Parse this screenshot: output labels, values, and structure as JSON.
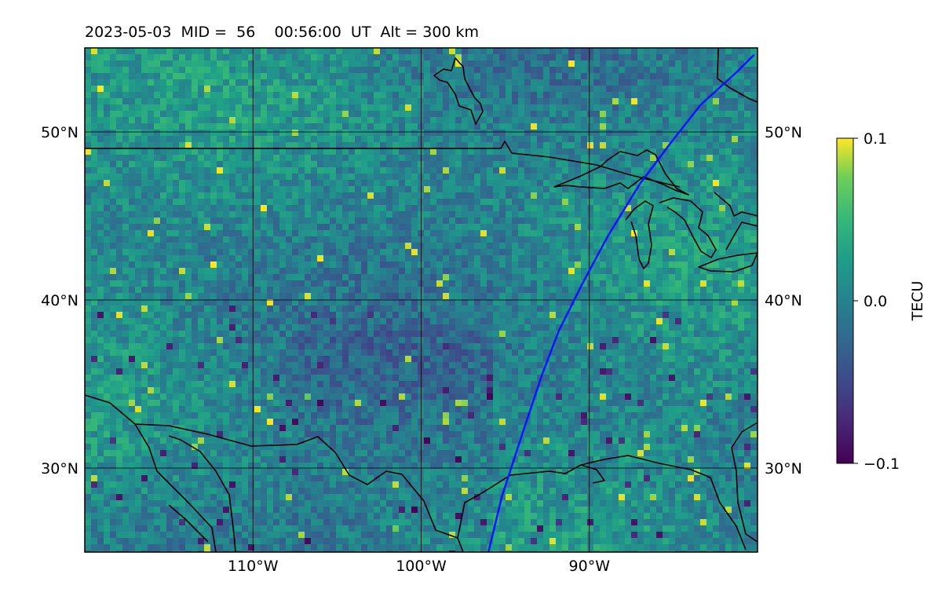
{
  "title": "2023-05-03  MID =  56    00:56:00  UT  Alt = 300 km",
  "map": {
    "lon_range": [
      -120,
      -80
    ],
    "lat_range": [
      25,
      55
    ],
    "lat_ticks": [
      {
        "value": 30,
        "label": "30°N"
      },
      {
        "value": 40,
        "label": "40°N"
      },
      {
        "value": 50,
        "label": "50°N"
      }
    ],
    "lon_ticks": [
      {
        "value": -110,
        "label": "110°W"
      },
      {
        "value": -100,
        "label": "100°W"
      },
      {
        "value": -90,
        "label": "90°W"
      }
    ],
    "track_color": "#0a14ff",
    "track": [
      [
        -96.0,
        25.0
      ],
      [
        -95.2,
        28.3
      ],
      [
        -94.0,
        32.0
      ],
      [
        -92.8,
        35.6
      ],
      [
        -91.8,
        38.2
      ],
      [
        -90.4,
        41.0
      ],
      [
        -88.9,
        43.8
      ],
      [
        -87.0,
        46.9
      ],
      [
        -85.2,
        49.3
      ],
      [
        -83.4,
        51.6
      ],
      [
        -81.2,
        53.6
      ],
      [
        -80.2,
        54.6
      ]
    ]
  },
  "colorbar": {
    "label": "TECU",
    "min": -0.1,
    "max": 0.1,
    "ticks": [
      {
        "value": 0.1,
        "label": "0.1"
      },
      {
        "value": 0.0,
        "label": "0.0"
      },
      {
        "value": -0.1,
        "label": "−0.1"
      }
    ],
    "colormap": "viridis"
  }
}
